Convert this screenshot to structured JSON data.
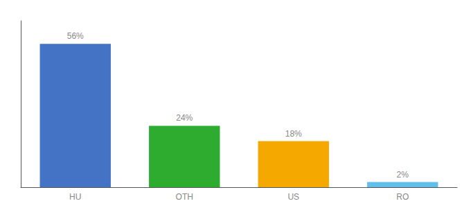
{
  "chart_data": {
    "type": "bar",
    "categories": [
      "HU",
      "OTH",
      "US",
      "RO"
    ],
    "values": [
      56,
      24,
      18,
      2
    ],
    "value_labels": [
      "56%",
      "24%",
      "18%",
      "2%"
    ],
    "colors": [
      "#4472c4",
      "#2eac30",
      "#f5a800",
      "#62c0e8"
    ],
    "data_labels": true,
    "ylim": [
      0,
      65
    ],
    "yticks": [],
    "grid": false,
    "tick_labels": "x"
  }
}
